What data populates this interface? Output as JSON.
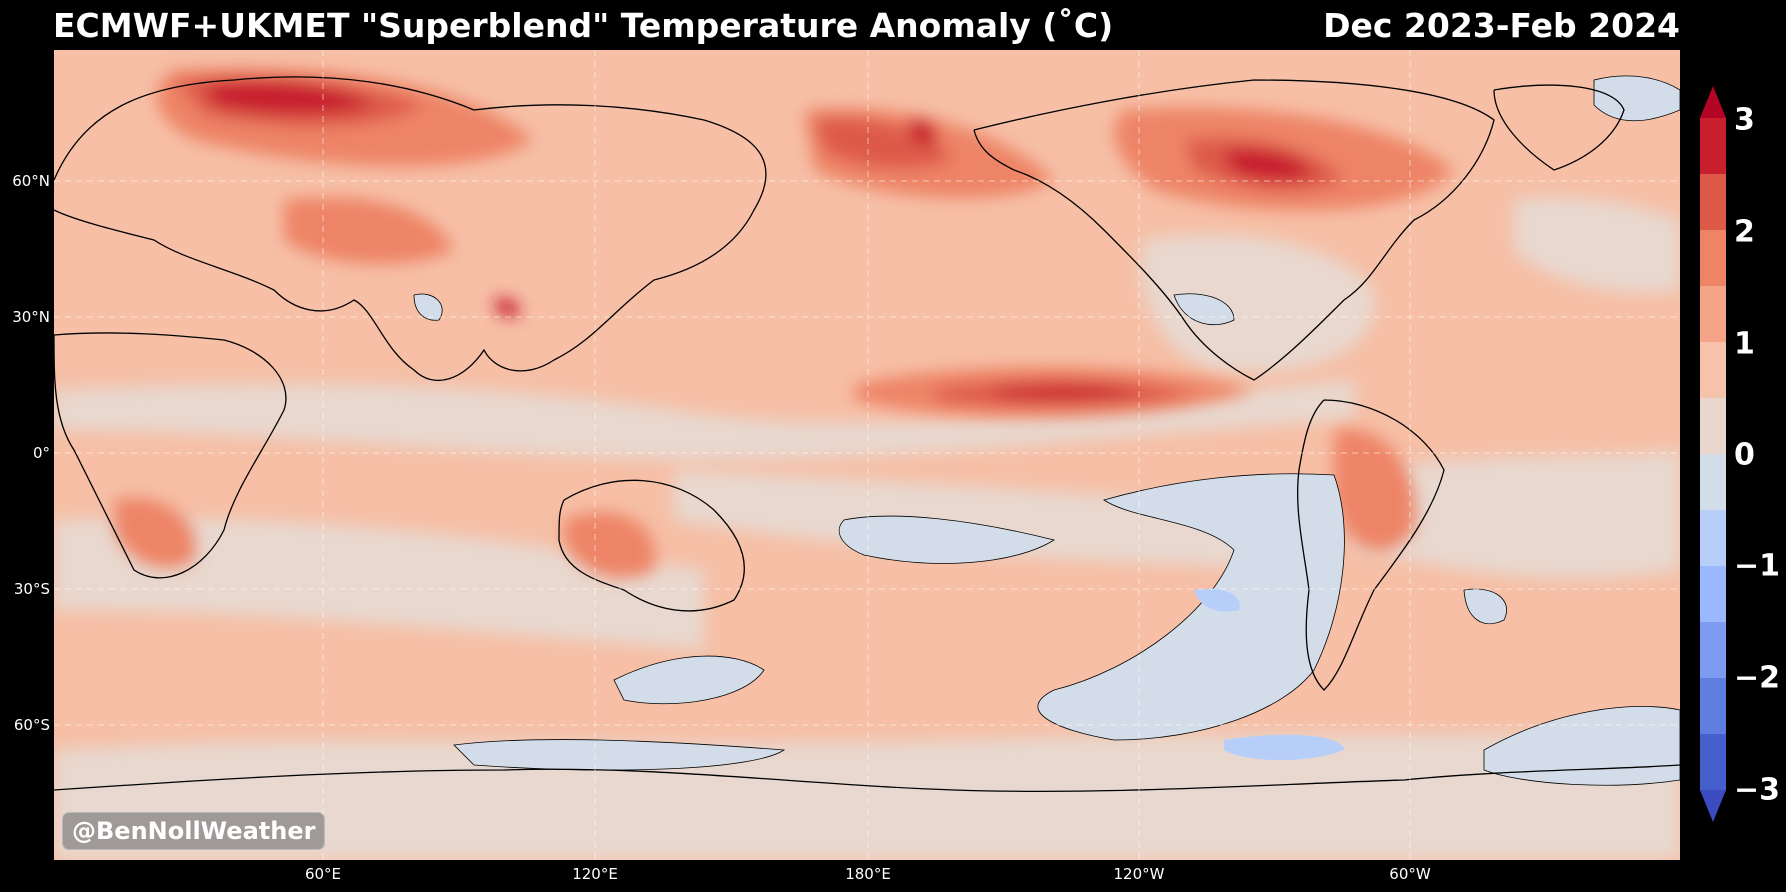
{
  "title": "ECMWF+UKMET \"Superblend\" Temperature Anomaly (˚C)",
  "period": "Dec 2023-Feb 2024",
  "watermark": "@BenNollWeather",
  "latitude_labels": [
    "60°N",
    "30°N",
    "0°",
    "30°S",
    "60°S"
  ],
  "longitude_labels": [
    "60°E",
    "120°E",
    "180°E",
    "120°W",
    "60°W"
  ],
  "colorbar": {
    "labels": [
      "3",
      "2",
      "1",
      "0",
      "−1",
      "−2",
      "−3"
    ],
    "levels_top_to_bottom": [
      "#c81e2e",
      "#dd5a48",
      "#ee8466",
      "#f6a487",
      "#f5c3ab",
      "#e9d7cd",
      "#d2dde9",
      "#b7cff8",
      "#9ab8fb",
      "#7d9bf1",
      "#5f7ee0",
      "#4560cc"
    ],
    "extend_max_color": "#b40426",
    "extend_min_color": "#3b4cc0"
  },
  "colors": {
    "background": "#000000",
    "map_base": "#f6bfa6",
    "neutral_anomaly": "#e8d8cf",
    "cool_anomaly": "#d3dde9",
    "land_outline": "#000000",
    "gridline": "#ffffff"
  }
}
